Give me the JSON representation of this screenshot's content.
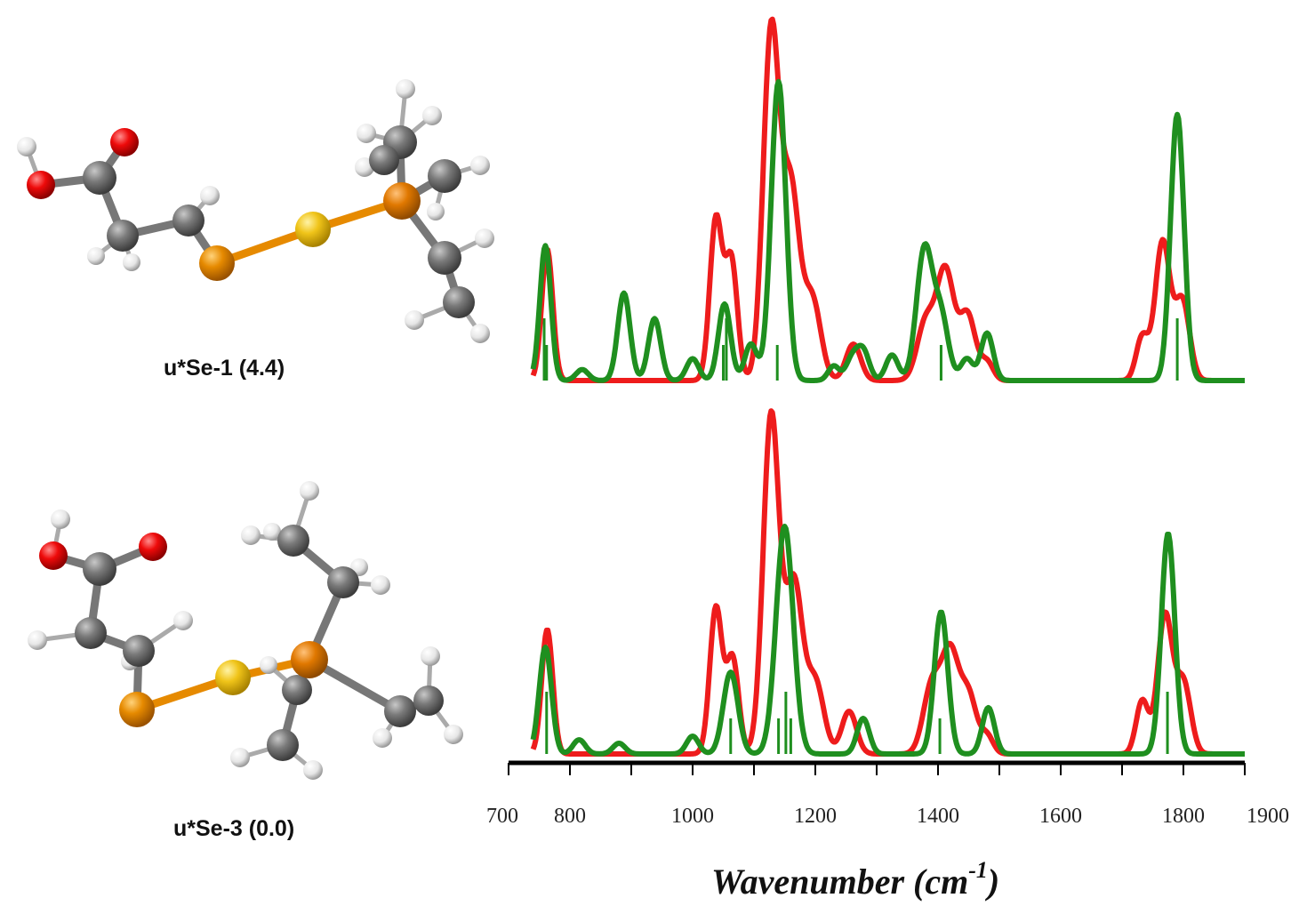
{
  "molecules": [
    {
      "label": "u*Se-1 (4.4)"
    },
    {
      "label": "u*Se-3 (0.0)"
    }
  ],
  "colors": {
    "red": "#ee1c1c",
    "green": "#1f8f1f",
    "axis": "#000000"
  },
  "chart_data": {
    "type": "line",
    "xlabel": "Wavenumber (cm",
    "xlabel_sup": "-1",
    "xlabel_close": ")",
    "ylabel": "",
    "xlim": [
      700,
      1900
    ],
    "xticks": [
      700,
      800,
      1000,
      1200,
      1400,
      1600,
      1800,
      1900
    ],
    "panels": [
      {
        "name": "u*Se-1",
        "series": [
          {
            "color": "red",
            "peaks": [
              [
                763,
                0.36,
                9
              ],
              [
                1038,
                0.44,
                10
              ],
              [
                1063,
                0.33,
                10
              ],
              [
                1128,
                0.95,
                13
              ],
              [
                1160,
                0.52,
                14
              ],
              [
                1195,
                0.22,
                14
              ],
              [
                1262,
                0.1,
                12
              ],
              [
                1380,
                0.16,
                14
              ],
              [
                1412,
                0.3,
                14
              ],
              [
                1448,
                0.18,
                13
              ],
              [
                1480,
                0.05,
                10
              ],
              [
                1733,
                0.12,
                10
              ],
              [
                1766,
                0.38,
                12
              ],
              [
                1798,
                0.22,
                12
              ]
            ]
          },
          {
            "color": "green",
            "peaks": [
              [
                760,
                0.37,
                9
              ],
              [
                820,
                0.03,
                10
              ],
              [
                888,
                0.24,
                10
              ],
              [
                938,
                0.17,
                10
              ],
              [
                1000,
                0.06,
                10
              ],
              [
                1052,
                0.21,
                10
              ],
              [
                1095,
                0.1,
                10
              ],
              [
                1140,
                0.82,
                12
              ],
              [
                1230,
                0.04,
                9
              ],
              [
                1260,
                0.06,
                10
              ],
              [
                1278,
                0.08,
                10
              ],
              [
                1325,
                0.07,
                10
              ],
              [
                1378,
                0.36,
                13
              ],
              [
                1405,
                0.17,
                12
              ],
              [
                1447,
                0.06,
                10
              ],
              [
                1480,
                0.13,
                10
              ],
              [
                1790,
                0.73,
                11
              ]
            ]
          }
        ],
        "sticks": [
          {
            "x": [
              758,
              762,
              1050,
              1055,
              1138,
              1405,
              1790
            ],
            "color": "green"
          }
        ]
      },
      {
        "name": "u*Se-3",
        "series": [
          {
            "color": "red",
            "peaks": [
              [
                763,
                0.35,
                9
              ],
              [
                1038,
                0.41,
                10
              ],
              [
                1065,
                0.27,
                10
              ],
              [
                1128,
                0.95,
                13
              ],
              [
                1165,
                0.48,
                14
              ],
              [
                1200,
                0.2,
                14
              ],
              [
                1255,
                0.12,
                12
              ],
              [
                1390,
                0.19,
                14
              ],
              [
                1420,
                0.28,
                14
              ],
              [
                1450,
                0.16,
                13
              ],
              [
                1480,
                0.05,
                10
              ],
              [
                1733,
                0.15,
                10
              ],
              [
                1770,
                0.39,
                12
              ],
              [
                1800,
                0.2,
                12
              ]
            ]
          },
          {
            "color": "green",
            "peaks": [
              [
                760,
                0.3,
                10
              ],
              [
                815,
                0.04,
                10
              ],
              [
                880,
                0.03,
                10
              ],
              [
                1000,
                0.05,
                10
              ],
              [
                1062,
                0.23,
                12
              ],
              [
                1150,
                0.64,
                14
              ],
              [
                1278,
                0.1,
                10
              ],
              [
                1405,
                0.4,
                11
              ],
              [
                1482,
                0.13,
                10
              ],
              [
                1775,
                0.62,
                11
              ]
            ]
          }
        ],
        "sticks": [
          {
            "x": [
              762,
              1062,
              1140,
              1152,
              1160,
              1403,
              1774
            ],
            "color": "green"
          }
        ]
      }
    ]
  }
}
